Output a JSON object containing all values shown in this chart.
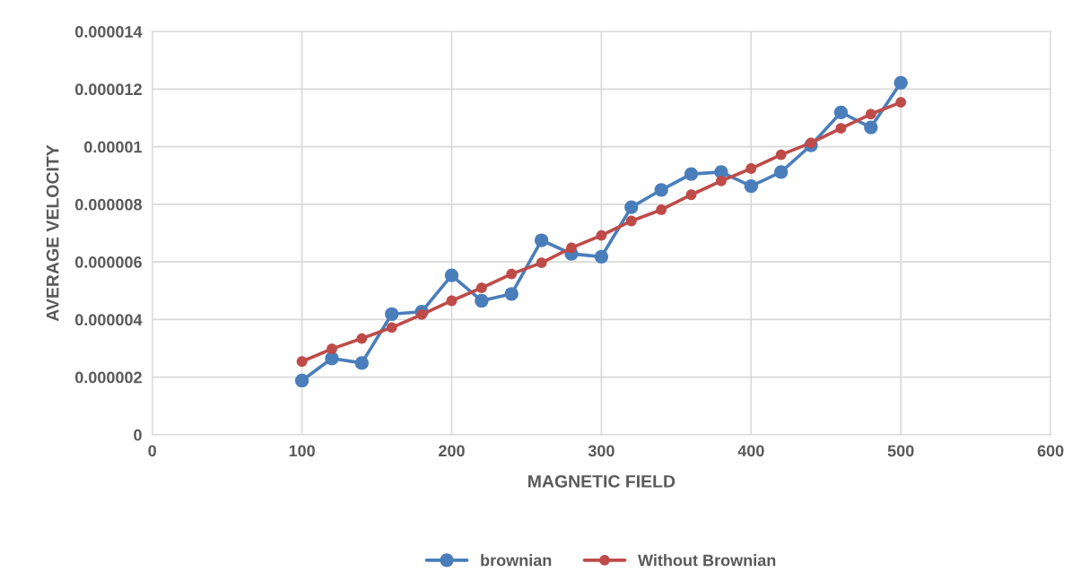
{
  "chart_data": {
    "type": "line",
    "xlabel": "MAGNETIC FIELD",
    "ylabel": "AVERAGE VELOCITY",
    "x": [
      100,
      120,
      140,
      160,
      180,
      200,
      220,
      240,
      260,
      280,
      300,
      320,
      340,
      360,
      380,
      400,
      420,
      440,
      460,
      480,
      500
    ],
    "series": [
      {
        "name": "brownian",
        "color": "#4a7ebb",
        "values": [
          1.88e-06,
          2.65e-06,
          2.49e-06,
          4.19e-06,
          4.27e-06,
          5.53e-06,
          4.65e-06,
          4.89e-06,
          6.75e-06,
          6.28e-06,
          6.18e-06,
          7.9e-06,
          8.5e-06,
          9.05e-06,
          9.12e-06,
          8.63e-06,
          9.12e-06,
          1.005e-05,
          1.119e-05,
          1.067e-05,
          1.222e-05
        ]
      },
      {
        "name": "Without Brownian",
        "color": "#be4b48",
        "values": [
          2.54e-06,
          2.98e-06,
          3.34e-06,
          3.72e-06,
          4.17e-06,
          4.65e-06,
          5.1e-06,
          5.58e-06,
          5.97e-06,
          6.49e-06,
          6.92e-06,
          7.42e-06,
          7.81e-06,
          8.33e-06,
          8.81e-06,
          9.24e-06,
          9.72e-06,
          1.013e-05,
          1.064e-05,
          1.113e-05,
          1.154e-05
        ]
      }
    ],
    "xlim": [
      0,
      600
    ],
    "xticks": [
      0,
      100,
      200,
      300,
      400,
      500,
      600
    ],
    "ylim": [
      0,
      1.4e-05
    ],
    "yticks": [
      0,
      {
        "value": 2e-06,
        "label": "0.000002"
      },
      {
        "value": 4e-06,
        "label": "0.000004"
      },
      {
        "value": 6e-06,
        "label": "0.000006"
      },
      {
        "value": 8e-06,
        "label": "0.000008"
      },
      {
        "value": 1e-05,
        "label": "0.00001"
      },
      {
        "value": 1.2e-05,
        "label": "0.000012"
      },
      {
        "value": 1.4e-05,
        "label": "0.000014"
      }
    ],
    "grid": true,
    "legend": "bottom",
    "marker": "circle",
    "line_style": "solid"
  }
}
